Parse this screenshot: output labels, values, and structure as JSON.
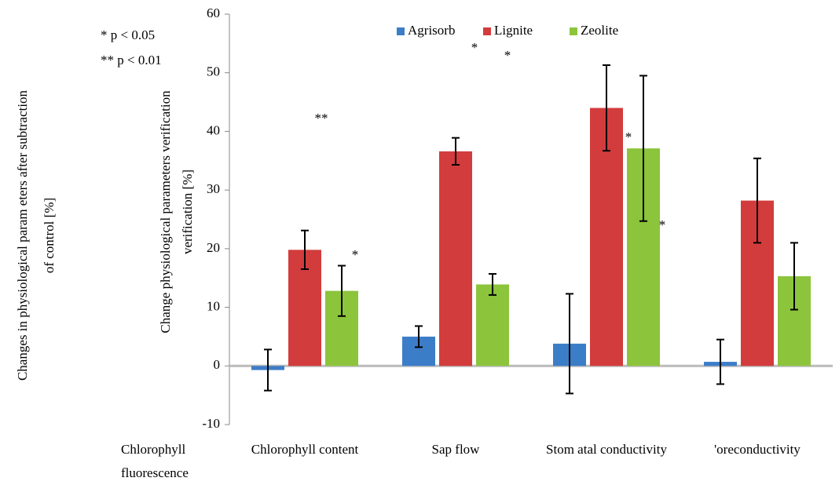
{
  "chart_data": {
    "type": "bar",
    "categories": [
      "Chlorophyll content",
      "Sap flow",
      "Stom atal conductivity",
      "'oreconductivity"
    ],
    "extra_category_label": [
      "Chlorophyll",
      "fluorescence"
    ],
    "series": [
      {
        "name": "Agrisorb",
        "color": "#3c7dc8",
        "values": [
          -0.7,
          5,
          3.8,
          0.7
        ],
        "errors": [
          3.5,
          1.8,
          8.5,
          3.8
        ]
      },
      {
        "name": "Lignite",
        "color": "#d23c3c",
        "values": [
          19.8,
          36.6,
          44,
          28.2
        ],
        "errors": [
          3.3,
          2.3,
          7.3,
          7.2
        ]
      },
      {
        "name": "Zeolite",
        "color": "#8cc43c",
        "values": [
          12.8,
          13.9,
          37.1,
          15.3
        ],
        "errors": [
          4.3,
          1.8,
          12.4,
          5.7
        ]
      }
    ],
    "ylabel": [
      "Changes in physiological param eters after subtraction",
      "of control [%]"
    ],
    "ylabel2": [
      "Change physiological parameters verification",
      "verification [%]"
    ],
    "annotations": {
      "legend_note": [
        "* p < 0.05",
        "** p < 0.01"
      ],
      "stars": [
        "**",
        "*",
        "*",
        "*",
        "*",
        "*"
      ]
    },
    "ylim": [
      -10,
      60
    ],
    "yticks": [
      -10,
      0,
      10,
      20,
      30,
      40,
      50,
      60
    ]
  }
}
